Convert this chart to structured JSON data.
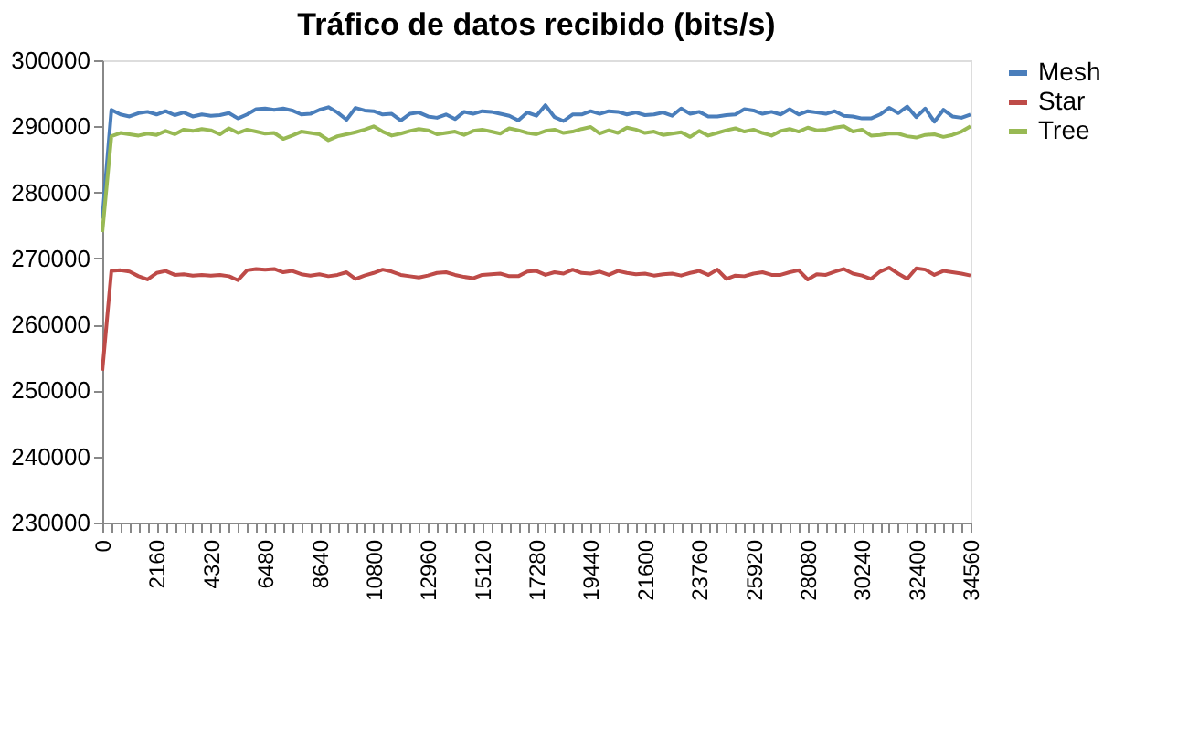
{
  "chart_data": {
    "type": "line",
    "title": "Tráfico de datos recibido (bits/s)",
    "categories": [
      "0",
      null,
      null,
      null,
      null,
      null,
      "2160",
      null,
      null,
      null,
      null,
      null,
      "4320",
      null,
      null,
      null,
      null,
      null,
      "6480",
      null,
      null,
      null,
      null,
      null,
      "8640",
      null,
      null,
      null,
      null,
      null,
      "10800",
      null,
      null,
      null,
      null,
      null,
      "12960",
      null,
      null,
      null,
      null,
      null,
      "15120",
      null,
      null,
      null,
      null,
      null,
      "17280",
      null,
      null,
      null,
      null,
      null,
      "19440",
      null,
      null,
      null,
      null,
      null,
      "21600",
      null,
      null,
      null,
      null,
      null,
      "23760",
      null,
      null,
      null,
      null,
      null,
      "25920",
      null,
      null,
      null,
      null,
      null,
      "28080",
      null,
      null,
      null,
      null,
      null,
      "30240",
      null,
      null,
      null,
      null,
      null,
      "32400",
      null,
      null,
      null,
      null,
      null,
      "34560"
    ],
    "series": [
      {
        "name": "Mesh",
        "color": "#4a7ebb",
        "values": [
          276000,
          292500,
          291800,
          291500,
          292000,
          292200,
          291800,
          292300,
          291700,
          292100,
          291500,
          291800,
          291600,
          291700,
          292000,
          291200,
          291800,
          292600,
          292700,
          292500,
          292700,
          292400,
          291800,
          291900,
          292500,
          292900,
          292100,
          291000,
          292800,
          292400,
          292300,
          291800,
          291900,
          290900,
          291900,
          292100,
          291500,
          291300,
          291800,
          291100,
          292200,
          291900,
          292300,
          292200,
          291900,
          291600,
          290900,
          292100,
          291600,
          293200,
          291400,
          290800,
          291800,
          291800,
          292300,
          291900,
          292300,
          292200,
          291800,
          292100,
          291700,
          291800,
          292100,
          291600,
          292700,
          291900,
          292200,
          291500,
          291500,
          291700,
          291800,
          292600,
          292400,
          291900,
          292200,
          291800,
          292600,
          291800,
          292300,
          292100,
          291900,
          292300,
          291600,
          291500,
          291200,
          291200,
          291800,
          292800,
          292000,
          293000,
          291400,
          292700,
          290700,
          292500,
          291500,
          291300,
          291800
        ]
      },
      {
        "name": "Star",
        "color": "#be4b48",
        "values": [
          253000,
          268100,
          268200,
          268000,
          267300,
          266800,
          267800,
          268100,
          267500,
          267600,
          267400,
          267500,
          267400,
          267500,
          267300,
          266700,
          268200,
          268400,
          268300,
          268400,
          267900,
          268100,
          267600,
          267400,
          267600,
          267300,
          267500,
          267900,
          266900,
          267400,
          267800,
          268300,
          268000,
          267500,
          267300,
          267100,
          267400,
          267800,
          267900,
          267500,
          267200,
          267000,
          267500,
          267600,
          267700,
          267300,
          267300,
          268000,
          268100,
          267500,
          267900,
          267700,
          268300,
          267800,
          267700,
          268000,
          267500,
          268100,
          267800,
          267600,
          267700,
          267400,
          267600,
          267700,
          267400,
          267800,
          268100,
          267500,
          268300,
          266900,
          267400,
          267300,
          267700,
          267900,
          267500,
          267500,
          267900,
          268200,
          266800,
          267600,
          267500,
          268000,
          268400,
          267700,
          267400,
          266900,
          268000,
          268600,
          267700,
          266900,
          268500,
          268300,
          267500,
          268100,
          267900,
          267700,
          267400
        ]
      },
      {
        "name": "Tree",
        "color": "#98b954",
        "values": [
          274000,
          288500,
          289000,
          288800,
          288600,
          288900,
          288700,
          289300,
          288800,
          289500,
          289300,
          289600,
          289400,
          288800,
          289700,
          289000,
          289500,
          289200,
          288900,
          289000,
          288100,
          288600,
          289200,
          289000,
          288800,
          287900,
          288500,
          288800,
          289100,
          289500,
          290000,
          289200,
          288600,
          288900,
          289300,
          289600,
          289400,
          288800,
          289000,
          289200,
          288700,
          289300,
          289500,
          289200,
          288900,
          289700,
          289400,
          289000,
          288800,
          289300,
          289500,
          289000,
          289200,
          289600,
          289900,
          288900,
          289400,
          289000,
          289800,
          289500,
          289000,
          289200,
          288700,
          288900,
          289100,
          288400,
          289300,
          288600,
          289000,
          289400,
          289700,
          289200,
          289500,
          289000,
          288600,
          289300,
          289600,
          289200,
          289800,
          289400,
          289500,
          289800,
          290000,
          289200,
          289500,
          288600,
          288700,
          288900,
          288900,
          288500,
          288300,
          288700,
          288800,
          288400,
          288700,
          289200,
          290000
        ]
      }
    ],
    "ylim": [
      230000,
      300000
    ],
    "yticks": [
      230000,
      240000,
      250000,
      260000,
      270000,
      280000,
      290000,
      300000
    ],
    "grid": false,
    "legend": "right"
  }
}
